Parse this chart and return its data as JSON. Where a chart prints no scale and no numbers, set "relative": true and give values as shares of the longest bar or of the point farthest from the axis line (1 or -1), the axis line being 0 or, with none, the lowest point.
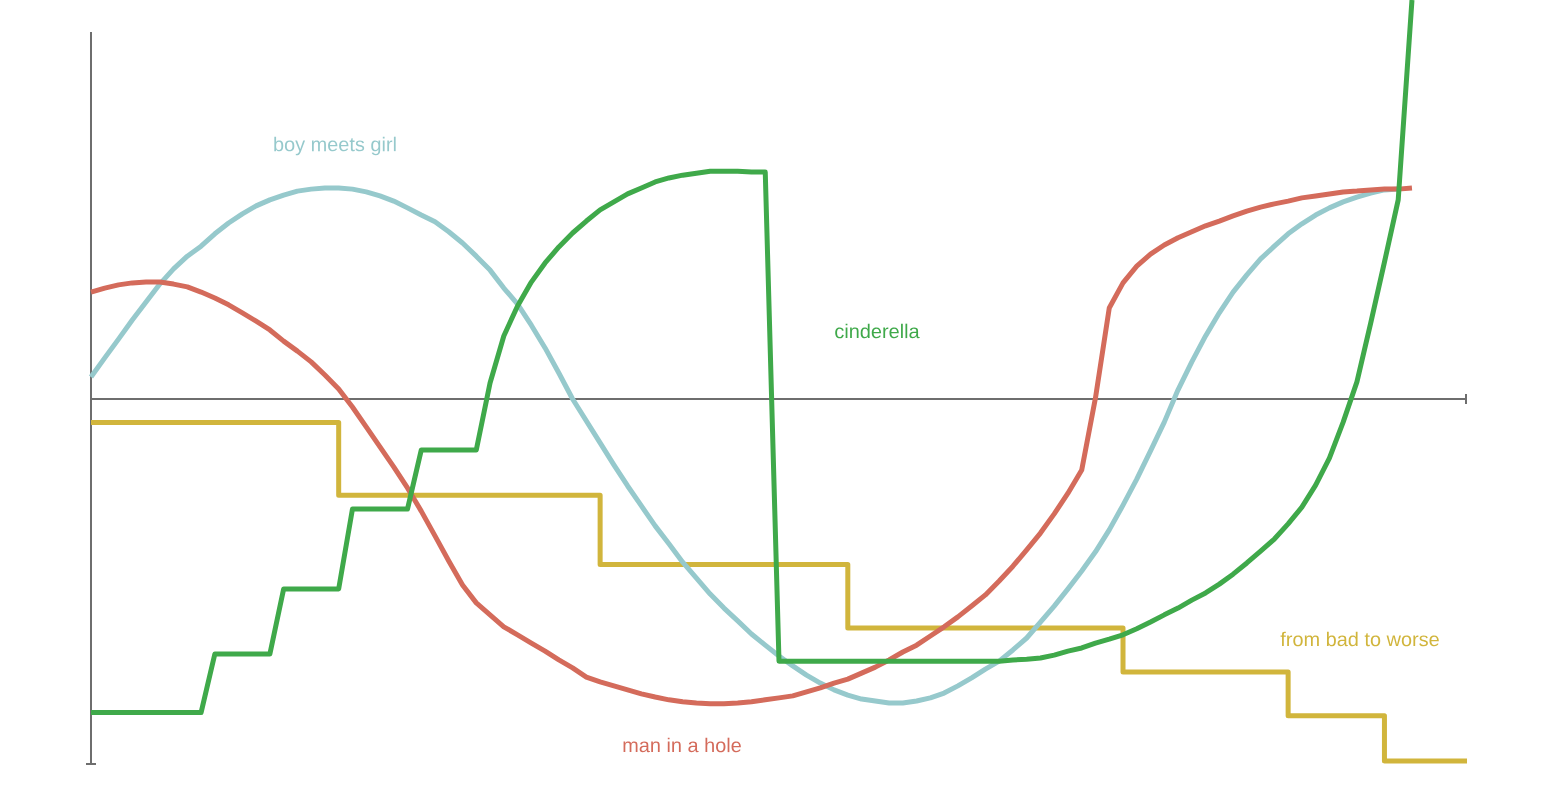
{
  "chart_data": {
    "type": "line",
    "relative": true,
    "categories": [
      null,
      null,
      null,
      null,
      null,
      null,
      null,
      null,
      null,
      null,
      null,
      null,
      null,
      null,
      null,
      null,
      null,
      null,
      null,
      null,
      null,
      null,
      null,
      null,
      null,
      null,
      null,
      null,
      null,
      null,
      null,
      null,
      null,
      null,
      null,
      null,
      null,
      null,
      null,
      null,
      null,
      null,
      null,
      null,
      null,
      null,
      null,
      null,
      null,
      null,
      null,
      null,
      null,
      null,
      null,
      null,
      null,
      null,
      null,
      null,
      null,
      null,
      null,
      null,
      null,
      null,
      null,
      null,
      null,
      null,
      null,
      null,
      null,
      null,
      null,
      null,
      null,
      null,
      null,
      null,
      null,
      null,
      null,
      null,
      null,
      null,
      null,
      null,
      null,
      null,
      null,
      null,
      null,
      null,
      null,
      null,
      null,
      null,
      null,
      null,
      null
    ],
    "series": [
      {
        "name": "from bad to worse",
        "type": "step",
        "color": "#d1b53c",
        "values": [
          -0.059,
          -0.059,
          -0.059,
          -0.059,
          -0.059,
          -0.059,
          -0.059,
          -0.059,
          -0.059,
          -0.059,
          -0.059,
          -0.059,
          -0.059,
          -0.059,
          -0.059,
          -0.059,
          -0.059,
          -0.059,
          -0.241,
          -0.241,
          -0.241,
          -0.241,
          -0.241,
          -0.241,
          -0.241,
          -0.241,
          -0.241,
          -0.241,
          -0.241,
          -0.241,
          -0.241,
          -0.241,
          -0.241,
          -0.241,
          -0.241,
          -0.241,
          -0.241,
          -0.415,
          -0.415,
          -0.415,
          -0.415,
          -0.415,
          -0.415,
          -0.415,
          -0.415,
          -0.415,
          -0.415,
          -0.415,
          -0.415,
          -0.415,
          -0.415,
          -0.415,
          -0.415,
          -0.415,
          -0.415,
          -0.574,
          -0.574,
          -0.574,
          -0.574,
          -0.574,
          -0.574,
          -0.574,
          -0.574,
          -0.574,
          -0.574,
          -0.574,
          -0.574,
          -0.574,
          -0.574,
          -0.574,
          -0.574,
          -0.574,
          -0.574,
          -0.574,
          -0.574,
          -0.684,
          -0.684,
          -0.684,
          -0.684,
          -0.684,
          -0.684,
          -0.684,
          -0.684,
          -0.684,
          -0.684,
          -0.684,
          -0.684,
          -0.794,
          -0.794,
          -0.794,
          -0.794,
          -0.794,
          -0.794,
          -0.794,
          -0.907,
          -0.907,
          -0.907,
          -0.907,
          -0.907,
          -0.907,
          -0.907
        ]
      },
      {
        "name": "boy meets girl",
        "color": "#96c9cc",
        "values": [
          0.055,
          0.103,
          0.15,
          0.198,
          0.243,
          0.288,
          0.326,
          0.358,
          0.383,
          0.414,
          0.441,
          0.464,
          0.484,
          0.499,
          0.511,
          0.521,
          0.526,
          0.529,
          0.529,
          0.526,
          0.519,
          0.509,
          0.496,
          0.479,
          0.461,
          0.444,
          0.419,
          0.391,
          0.358,
          0.323,
          0.278,
          0.238,
          0.185,
          0.128,
          0.065,
          0,
          -0.055,
          -0.11,
          -0.165,
          -0.218,
          -0.268,
          -0.318,
          -0.363,
          -0.409,
          -0.449,
          -0.489,
          -0.524,
          -0.556,
          -0.589,
          -0.617,
          -0.644,
          -0.669,
          -0.692,
          -0.712,
          -0.729,
          -0.742,
          -0.752,
          -0.757,
          -0.762,
          -0.762,
          -0.757,
          -0.749,
          -0.737,
          -0.719,
          -0.699,
          -0.677,
          -0.657,
          -0.629,
          -0.599,
          -0.559,
          -0.519,
          -0.476,
          -0.431,
          -0.383,
          -0.328,
          -0.266,
          -0.201,
          -0.13,
          -0.058,
          0.023,
          0.093,
          0.158,
          0.216,
          0.268,
          0.311,
          0.351,
          0.383,
          0.414,
          0.439,
          0.461,
          0.479,
          0.494,
          0.506,
          0.516,
          0.524,
          0.526,
          null,
          null,
          null,
          null,
          null
        ]
      },
      {
        "name": "man in a hole",
        "color": "#d46b5b",
        "values": [
          0.268,
          0.278,
          0.286,
          0.291,
          0.293,
          0.293,
          0.288,
          0.281,
          0.268,
          0.253,
          0.236,
          0.216,
          0.195,
          0.173,
          0.145,
          0.12,
          0.093,
          0.06,
          0.025,
          -0.02,
          -0.07,
          -0.12,
          -0.17,
          -0.223,
          -0.281,
          -0.343,
          -0.406,
          -0.466,
          -0.511,
          -0.541,
          -0.571,
          -0.591,
          -0.612,
          -0.632,
          -0.654,
          -0.674,
          -0.697,
          -0.709,
          -0.719,
          -0.729,
          -0.739,
          -0.747,
          -0.754,
          -0.759,
          -0.762,
          -0.764,
          -0.764,
          -0.762,
          -0.759,
          -0.754,
          -0.749,
          -0.744,
          -0.734,
          -0.724,
          -0.712,
          -0.702,
          -0.687,
          -0.672,
          -0.654,
          -0.634,
          -0.617,
          -0.594,
          -0.571,
          -0.546,
          -0.519,
          -0.491,
          -0.456,
          -0.419,
          -0.378,
          -0.336,
          -0.288,
          -0.236,
          -0.178,
          0.003,
          0.228,
          0.291,
          0.333,
          0.363,
          0.386,
          0.404,
          0.419,
          0.434,
          0.446,
          0.459,
          0.471,
          0.481,
          0.489,
          0.496,
          0.504,
          0.509,
          0.514,
          0.519,
          0.521,
          0.524,
          0.526,
          0.526,
          0.529,
          null,
          null,
          null,
          null
        ]
      },
      {
        "name": "cinderella",
        "color": "#3fa94a",
        "values": [
          -0.786,
          -0.786,
          -0.786,
          -0.786,
          -0.786,
          -0.786,
          -0.786,
          -0.786,
          -0.786,
          -0.639,
          -0.639,
          -0.639,
          -0.639,
          -0.639,
          -0.476,
          -0.476,
          -0.476,
          -0.476,
          -0.476,
          -0.276,
          -0.276,
          -0.276,
          -0.276,
          -0.276,
          -0.128,
          -0.128,
          -0.128,
          -0.128,
          -0.128,
          0.04,
          0.158,
          0.233,
          0.293,
          0.341,
          0.381,
          0.416,
          0.446,
          0.474,
          0.494,
          0.514,
          0.529,
          0.544,
          0.554,
          0.561,
          0.566,
          0.571,
          0.571,
          0.571,
          0.569,
          0.569,
          -0.657,
          -0.657,
          -0.657,
          -0.657,
          -0.657,
          -0.657,
          -0.657,
          -0.657,
          -0.657,
          -0.657,
          -0.657,
          -0.657,
          -0.657,
          -0.657,
          -0.657,
          -0.657,
          -0.657,
          -0.654,
          -0.652,
          -0.649,
          -0.642,
          -0.632,
          -0.624,
          -0.612,
          -0.602,
          -0.591,
          -0.576,
          -0.559,
          -0.541,
          -0.524,
          -0.504,
          -0.486,
          -0.464,
          -0.439,
          -0.411,
          -0.381,
          -0.351,
          -0.313,
          -0.271,
          -0.216,
          -0.148,
          -0.058,
          0.043,
          0.19,
          0.343,
          0.499,
          1,
          null,
          null,
          null,
          null
        ]
      }
    ]
  }
}
